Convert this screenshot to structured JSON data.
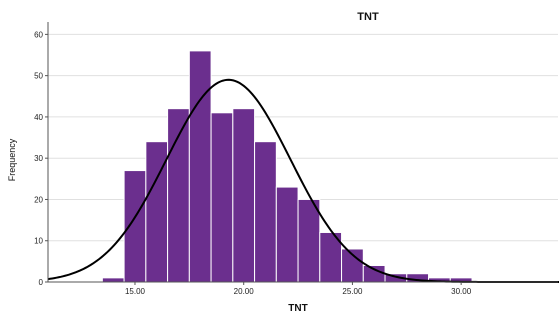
{
  "chart_data": {
    "type": "bar",
    "subtype": "histogram",
    "title": "TNT",
    "xlabel": "TNT",
    "ylabel": "Frequency",
    "xlim": [
      11.0,
      34.5
    ],
    "ylim": [
      0,
      63
    ],
    "x_ticks": [
      15,
      20,
      25,
      30
    ],
    "x_tick_labels": [
      "15.00",
      "20.00",
      "25.00",
      "30.00"
    ],
    "y_ticks": [
      0,
      10,
      20,
      30,
      40,
      50,
      60
    ],
    "y_tick_labels": [
      "0",
      "10",
      "20",
      "30",
      "40",
      "50",
      "60"
    ],
    "grid": true,
    "legend": "none",
    "bin_width": 1.0,
    "bins": [
      {
        "start": 13.5,
        "end": 14.5,
        "count": 1
      },
      {
        "start": 14.5,
        "end": 15.5,
        "count": 27
      },
      {
        "start": 15.5,
        "end": 16.5,
        "count": 34
      },
      {
        "start": 16.5,
        "end": 17.5,
        "count": 42
      },
      {
        "start": 17.5,
        "end": 18.5,
        "count": 56
      },
      {
        "start": 18.5,
        "end": 19.5,
        "count": 41
      },
      {
        "start": 19.5,
        "end": 20.5,
        "count": 42
      },
      {
        "start": 20.5,
        "end": 21.5,
        "count": 34
      },
      {
        "start": 21.5,
        "end": 22.5,
        "count": 23
      },
      {
        "start": 22.5,
        "end": 23.5,
        "count": 20
      },
      {
        "start": 23.5,
        "end": 24.5,
        "count": 12
      },
      {
        "start": 24.5,
        "end": 25.5,
        "count": 8
      },
      {
        "start": 25.5,
        "end": 26.5,
        "count": 4
      },
      {
        "start": 26.5,
        "end": 27.5,
        "count": 2
      },
      {
        "start": 27.5,
        "end": 28.5,
        "count": 2
      },
      {
        "start": 28.5,
        "end": 29.5,
        "count": 1
      },
      {
        "start": 29.5,
        "end": 30.5,
        "count": 1
      }
    ],
    "normal_curve": {
      "mean": 19.3,
      "sd": 2.85
    },
    "bar_color": "#6b2f8e",
    "bar_edge_color": "#ffffff",
    "curve_color": "#000000",
    "grid_color": "#e0e0e0"
  }
}
